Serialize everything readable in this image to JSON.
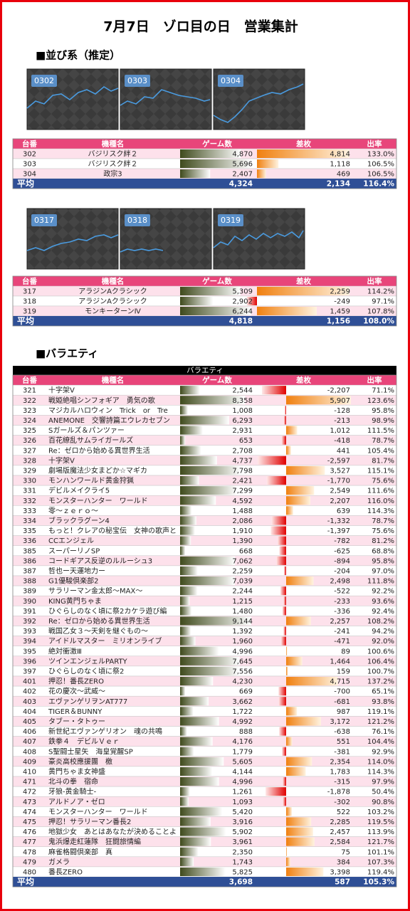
{
  "title": "7月7日　ゾロ目の日　営業集計",
  "section1": "■並び系（推定）",
  "groups": [
    {
      "graphs": [
        "0302",
        "0303",
        "0304"
      ],
      "table": {
        "columns": [
          "台番",
          "機種名",
          "ゲーム数",
          "差枚",
          "出率"
        ],
        "rows": [
          [
            "302",
            "バジリスク絆２",
            "4,870",
            "4,814",
            "133.0%"
          ],
          [
            "303",
            "バジリスク絆２",
            "5,696",
            "1,118",
            "106.5%"
          ],
          [
            "304",
            "政宗3",
            "2,407",
            "469",
            "106.5%"
          ]
        ],
        "average": {
          "label": "平均",
          "games": "4,324",
          "diff": "2,134",
          "rate": "116.4%"
        }
      }
    },
    {
      "graphs": [
        "0317",
        "0318",
        "0319"
      ],
      "table": {
        "columns": [
          "台番",
          "機種名",
          "ゲーム数",
          "差枚",
          "出率"
        ],
        "rows": [
          [
            "317",
            "アラジンAクラシック",
            "5,309",
            "2,259",
            "114.2%"
          ],
          [
            "318",
            "アラジンAクラシック",
            "2,902",
            "-249",
            "97.1%"
          ],
          [
            "319",
            "モンキーターンⅣ",
            "6,244",
            "1,459",
            "107.8%"
          ]
        ],
        "average": {
          "label": "平均",
          "games": "4,818",
          "diff": "1,156",
          "rate": "108.0%"
        }
      }
    }
  ],
  "section2": "■バラエティ",
  "variety": {
    "caption": "バラエティ",
    "columns": [
      "台番",
      "機種名",
      "ゲーム数",
      "差枚",
      "出率"
    ],
    "rows": [
      [
        "321",
        "十字架Ⅴ",
        "2,544",
        "-2,207",
        "71.1%"
      ],
      [
        "322",
        "戦姫絶唱シンフォギア　勇気の歌",
        "8,358",
        "5,907",
        "123.6%"
      ],
      [
        "323",
        "マジカルハロウィン　Trick　or　Tre",
        "1,008",
        "-128",
        "95.8%"
      ],
      [
        "324",
        "ANEMONE　交響詩篇エウレカセブン",
        "6,293",
        "-213",
        "98.9%"
      ],
      [
        "325",
        "Sガールズ＆パンツァー",
        "2,931",
        "1,012",
        "111.5%"
      ],
      [
        "326",
        "百花繚乱サムライガールズ",
        "653",
        "-418",
        "78.7%"
      ],
      [
        "327",
        "Re：ゼロから始める異世界生活",
        "2,708",
        "441",
        "105.4%"
      ],
      [
        "328",
        "十字架Ⅴ",
        "4,737",
        "-2,597",
        "81.7%"
      ],
      [
        "329",
        "劇場版魔法少女まどか☆マギカ",
        "7,798",
        "3,527",
        "115.1%"
      ],
      [
        "330",
        "モンハンワールド黄金狩猟",
        "2,421",
        "-1,770",
        "75.6%"
      ],
      [
        "331",
        "デビルメイクライ5",
        "7,299",
        "2,549",
        "111.6%"
      ],
      [
        "332",
        "モンスターハンター　ワールド",
        "4,592",
        "2,207",
        "116.0%"
      ],
      [
        "333",
        "零～ｚｅｒｏ～",
        "1,488",
        "639",
        "114.3%"
      ],
      [
        "334",
        "ブラックラグーン4",
        "2,086",
        "-1,332",
        "78.7%"
      ],
      [
        "335",
        "もっと！クレアの秘宝伝　女神の歌声と",
        "1,910",
        "-1,397",
        "75.6%"
      ],
      [
        "336",
        "CCエンジェル",
        "1,390",
        "-782",
        "81.2%"
      ],
      [
        "385",
        "スーパーリノSP",
        "668",
        "-625",
        "68.8%"
      ],
      [
        "386",
        "コードギアス反逆のルルーシュ3",
        "7,062",
        "-894",
        "95.8%"
      ],
      [
        "387",
        "哲也ー天運地力ー",
        "2,259",
        "-204",
        "97.0%"
      ],
      [
        "388",
        "G1優駿倶楽部2",
        "7,039",
        "2,498",
        "111.8%"
      ],
      [
        "389",
        "サラリーマン金太郎～MAX～",
        "2,244",
        "-522",
        "92.2%"
      ],
      [
        "390",
        "KING黄門ちゃま",
        "1,215",
        "-233",
        "93.6%"
      ],
      [
        "391",
        "ひぐらしのなく頃に祭2カケラ遊び編",
        "1,480",
        "-336",
        "92.4%"
      ],
      [
        "392",
        "Re：ゼロから始める異世界生活",
        "9,144",
        "2,257",
        "108.2%"
      ],
      [
        "393",
        "戦国乙女３～天剣を継ぐもの～",
        "1,392",
        "-241",
        "94.2%"
      ],
      [
        "394",
        "アイドルマスター　ミリオンライブ",
        "1,960",
        "-471",
        "92.0%"
      ],
      [
        "395",
        "絶対衝激Ⅲ",
        "4,996",
        "89",
        "100.6%"
      ],
      [
        "396",
        "ツインエンジェルPARTY",
        "7,645",
        "1,464",
        "106.4%"
      ],
      [
        "397",
        "ひぐらしのなく頃に祭2",
        "7,556",
        "159",
        "100.7%"
      ],
      [
        "401",
        "押忍！番長ZERO",
        "4,230",
        "4,715",
        "137.2%"
      ],
      [
        "402",
        "花の慶次～武威～",
        "669",
        "-700",
        "65.1%"
      ],
      [
        "403",
        "エヴァンゲリヲンAT777",
        "3,662",
        "-681",
        "93.8%"
      ],
      [
        "404",
        "TIGER＆BUNNY",
        "1,722",
        "987",
        "119.1%"
      ],
      [
        "405",
        "タブー・タトゥー",
        "4,992",
        "3,172",
        "121.2%"
      ],
      [
        "406",
        "新世紀エヴァンゲリオン　魂の共鳴",
        "888",
        "-638",
        "76.1%"
      ],
      [
        "407",
        "鉄拳４　デビルＶｅｒ",
        "4,176",
        "551",
        "104.4%"
      ],
      [
        "408",
        "S聖闘士星矢　海皇覚醒SP",
        "1,779",
        "-381",
        "92.9%"
      ],
      [
        "409",
        "豪炎高校應援團　檄",
        "5,605",
        "2,354",
        "114.0%"
      ],
      [
        "410",
        "黄門ちゃま女神盛",
        "4,144",
        "1,783",
        "114.3%"
      ],
      [
        "471",
        "北斗の拳　宿命",
        "4,996",
        "-315",
        "97.9%"
      ],
      [
        "472",
        "牙狼-黄金騎士-",
        "1,261",
        "-1,878",
        "50.4%"
      ],
      [
        "473",
        "アルドノア・ゼロ",
        "1,093",
        "-302",
        "90.8%"
      ],
      [
        "474",
        "モンスターハンター　ワールド",
        "5,420",
        "522",
        "103.2%"
      ],
      [
        "475",
        "押忍！サラリーマン番長2",
        "3,916",
        "2,285",
        "119.5%"
      ],
      [
        "476",
        "地獄少女　あとはあなたが決めることよ",
        "5,902",
        "2,457",
        "113.9%"
      ],
      [
        "477",
        "鬼浜爆走紅蓮隊　狂闘旅情編",
        "3,961",
        "2,584",
        "121.7%"
      ],
      [
        "478",
        "麻雀格闘倶楽部　真",
        "2,350",
        "75",
        "101.1%"
      ],
      [
        "479",
        "ガメラ",
        "1,743",
        "384",
        "107.3%"
      ],
      [
        "480",
        "番長ZERO",
        "5,825",
        "3,398",
        "119.4%"
      ]
    ],
    "average": {
      "label": "平均",
      "games": "3,698",
      "diff": "587",
      "rate": "105.3%"
    }
  }
}
